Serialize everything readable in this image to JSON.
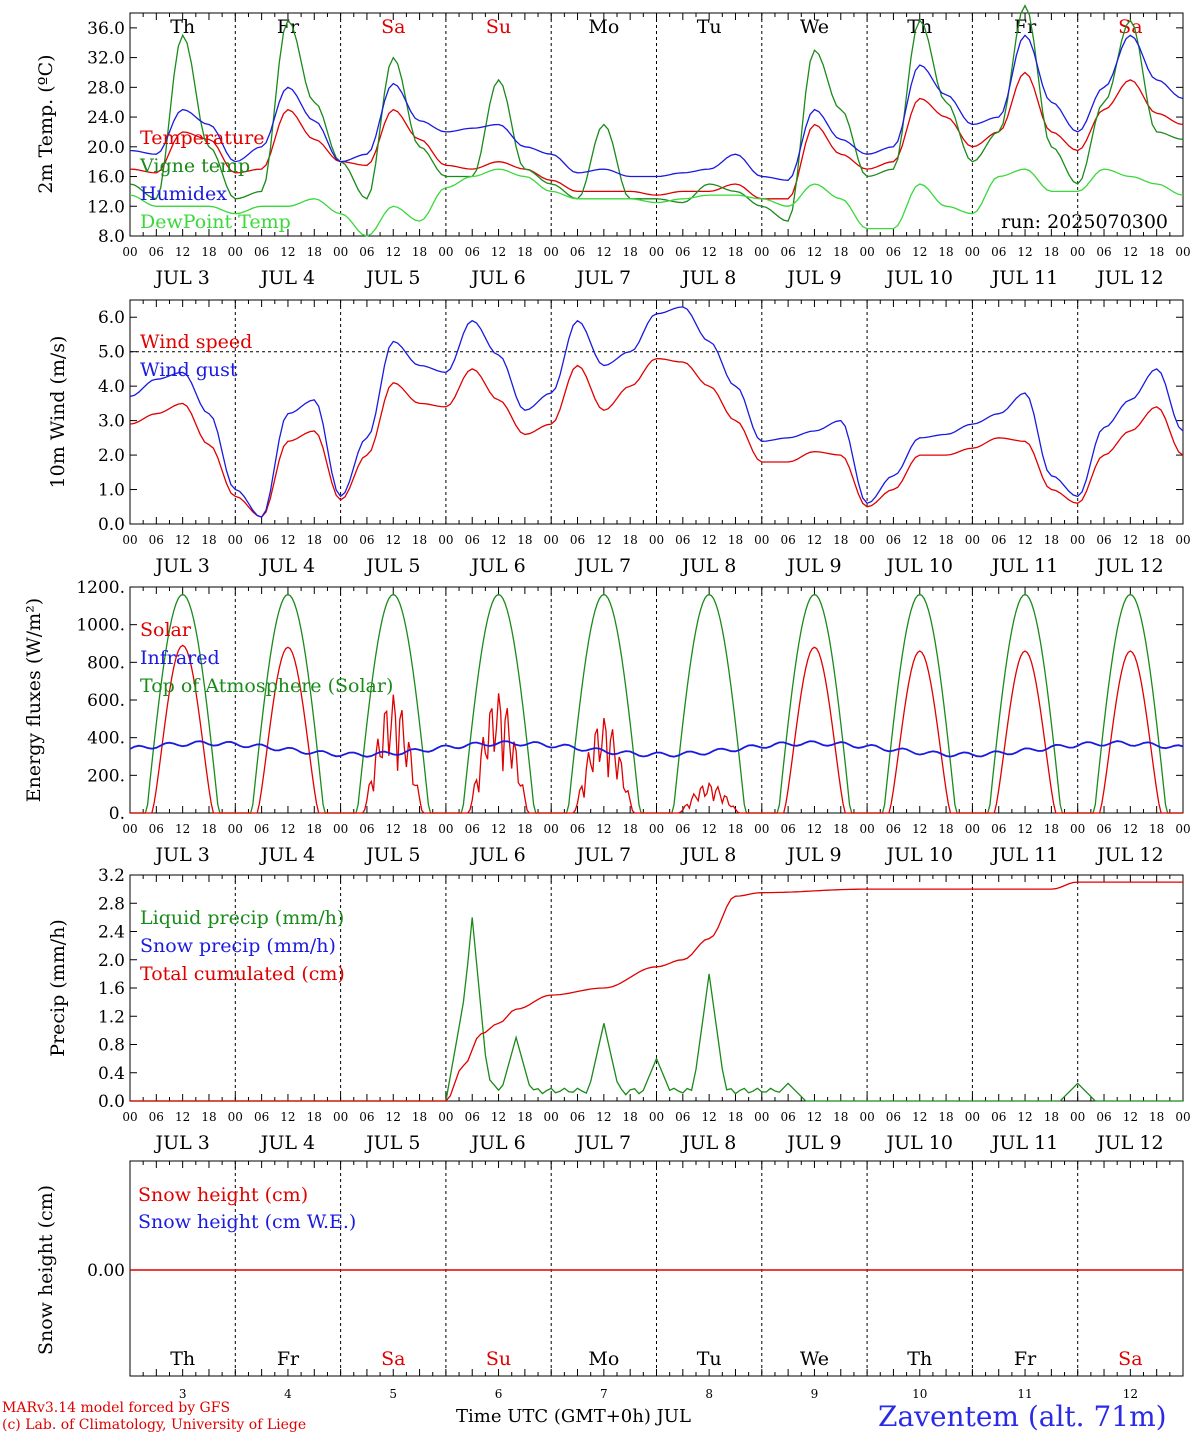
{
  "colors": {
    "red": "#e00000",
    "green": "#1a8a1a",
    "blue": "#1a1ae0",
    "lightgreen": "#3ad83a",
    "black": "#000000"
  },
  "day_names": [
    "Th",
    "Fr",
    "Sa",
    "Su",
    "Mo",
    "Tu",
    "We",
    "Th",
    "Fr",
    "Sa"
  ],
  "weekend_days": [
    "Sa",
    "Su"
  ],
  "date_labels": [
    "JUL  3",
    "JUL  4",
    "JUL  5",
    "JUL  6",
    "JUL  7",
    "JUL  8",
    "JUL  9",
    "JUL 10",
    "JUL 11",
    "JUL 12"
  ],
  "hour_ticks": [
    "00",
    "06",
    "12",
    "18"
  ],
  "bottom_day_numbers": [
    "3",
    "4",
    "5",
    "6",
    "7",
    "8",
    "9",
    "10",
    "11",
    "12"
  ],
  "footer": {
    "model": "MARv3.14 model forced by GFS",
    "credit": "(c) Lab. of Climatology, University of Liege",
    "xlabel": "Time UTC (GMT+0h) JUL",
    "station": "Zaventem (alt. 71m)"
  },
  "chart_data": [
    {
      "type": "line",
      "ylabel": "2m Temp. (ºC)",
      "ylim": [
        8,
        38
      ],
      "yticks": [
        "8.0",
        "12.0",
        "16.0",
        "20.0",
        "24.0",
        "28.0",
        "32.0",
        "36.0"
      ],
      "annotation": "run: 2025070300",
      "x_hours": [
        0,
        6,
        12,
        18,
        24,
        30,
        36,
        42,
        48,
        54,
        60,
        66,
        72,
        78,
        84,
        90,
        96,
        102,
        108,
        114,
        120,
        126,
        132,
        138,
        144,
        150,
        156,
        162,
        168,
        174,
        180,
        186,
        192,
        198,
        204,
        210,
        216,
        222,
        228,
        234,
        240
      ],
      "series": [
        {
          "name": "Temperature",
          "color": "red",
          "values": [
            17,
            16.5,
            22,
            21,
            16.5,
            17,
            25,
            21,
            18,
            17.5,
            25,
            21,
            17.5,
            17,
            18,
            17,
            15.5,
            14,
            14,
            14,
            13.5,
            14,
            14,
            15,
            13,
            13,
            23,
            19,
            17,
            18,
            26.5,
            24,
            20,
            22,
            30,
            22,
            19.5,
            25,
            29,
            24.5,
            23
          ]
        },
        {
          "name": "Vigne temp",
          "color": "green",
          "values": [
            15,
            13,
            35,
            20,
            13,
            14,
            37,
            26,
            18,
            13,
            32,
            20,
            16,
            16,
            29,
            17,
            15,
            13,
            23,
            13,
            13,
            12.5,
            15,
            14,
            12,
            10,
            33,
            25,
            16,
            17,
            37,
            26,
            18,
            22,
            39,
            20,
            15,
            26,
            37,
            22,
            21
          ]
        },
        {
          "name": "Humidex",
          "color": "blue",
          "values": [
            19.5,
            19,
            25,
            23,
            18,
            20,
            28,
            23.5,
            18,
            19,
            28.5,
            23.5,
            22,
            22.5,
            23,
            20,
            19,
            16.5,
            17,
            16,
            16,
            16.5,
            17,
            19,
            16,
            15.5,
            25,
            21,
            19,
            20,
            31,
            27,
            23,
            24,
            35,
            26,
            22,
            28,
            35,
            29,
            26.5
          ]
        },
        {
          "name": "DewPoint Temp",
          "color": "lightgreen",
          "values": [
            13.5,
            12,
            12,
            12,
            11,
            12,
            12,
            13,
            11,
            8,
            12,
            10,
            14.5,
            16,
            17,
            16,
            14,
            13,
            13,
            13,
            12.5,
            13,
            13.5,
            13.5,
            13,
            12,
            15,
            13,
            9,
            9,
            15,
            12,
            11,
            16,
            17,
            14,
            14,
            17,
            16,
            15,
            13.5
          ]
        }
      ]
    },
    {
      "type": "line",
      "ylabel": "10m Wind (m/s)",
      "ylim": [
        0,
        6.5
      ],
      "yticks": [
        "0.0",
        "1.0",
        "2.0",
        "3.0",
        "4.0",
        "5.0",
        "6.0"
      ],
      "reference_line": 5.0,
      "x_hours": [
        0,
        6,
        12,
        18,
        24,
        30,
        36,
        42,
        48,
        54,
        60,
        66,
        72,
        78,
        84,
        90,
        96,
        102,
        108,
        114,
        120,
        126,
        132,
        138,
        144,
        150,
        156,
        162,
        168,
        174,
        180,
        186,
        192,
        198,
        204,
        210,
        216,
        222,
        228,
        234,
        240
      ],
      "series": [
        {
          "name": "Wind speed",
          "color": "red",
          "values": [
            2.9,
            3.2,
            3.5,
            2.3,
            0.8,
            0.2,
            2.4,
            2.7,
            0.7,
            2.0,
            4.1,
            3.5,
            3.4,
            4.5,
            3.6,
            2.6,
            2.9,
            4.6,
            3.3,
            4.0,
            4.8,
            4.7,
            4.0,
            3.0,
            1.8,
            1.8,
            2.1,
            2.0,
            0.5,
            1.0,
            2.0,
            2.0,
            2.2,
            2.5,
            2.4,
            1.0,
            0.6,
            2.0,
            2.7,
            3.4,
            2.0
          ]
        },
        {
          "name": "Wind gust",
          "color": "blue",
          "values": [
            3.7,
            4.2,
            4.4,
            3.2,
            1.0,
            0.2,
            3.2,
            3.6,
            0.8,
            2.5,
            5.3,
            4.6,
            4.4,
            5.9,
            4.9,
            3.3,
            3.8,
            5.9,
            4.6,
            5.0,
            6.1,
            6.3,
            5.3,
            4.0,
            2.4,
            2.5,
            2.7,
            3.0,
            0.6,
            1.4,
            2.5,
            2.6,
            2.9,
            3.2,
            3.8,
            1.4,
            0.8,
            2.8,
            3.6,
            4.5,
            2.7
          ]
        }
      ]
    },
    {
      "type": "line",
      "ylabel": "Energy fluxes (W/m²)",
      "ylim": [
        0,
        1200
      ],
      "yticks": [
        "0.",
        "200.",
        "400.",
        "600.",
        "800.",
        "1000.",
        "1200."
      ],
      "series": [
        {
          "name": "Solar",
          "color": "red",
          "daily_peak": [
            890,
            880,
            630,
            640,
            510,
            160,
            880,
            860,
            860,
            860
          ],
          "cloudy_days": [
            2,
            3,
            4,
            5
          ]
        },
        {
          "name": "Infrared",
          "color": "blue",
          "approx_range": [
            290,
            390
          ]
        },
        {
          "name": "Top of Atmosphere (Solar)",
          "color": "green",
          "daily_peak": 1160
        }
      ]
    },
    {
      "type": "line",
      "ylabel": "Precip (mm/h)",
      "ylim": [
        0,
        3.2
      ],
      "yticks": [
        "0.0",
        "0.4",
        "0.8",
        "1.2",
        "1.6",
        "2.0",
        "2.4",
        "2.8",
        "3.2"
      ],
      "x_hours": [
        0,
        72,
        76,
        80,
        84,
        88,
        96,
        108,
        120,
        126,
        132,
        138,
        144,
        168,
        210,
        216,
        240
      ],
      "series": [
        {
          "name": "Liquid precip (mm/h)",
          "color": "green",
          "peaks": [
            [
              72,
              0.0
            ],
            [
              76,
              1.4
            ],
            [
              78,
              2.6
            ],
            [
              82,
              0.3
            ],
            [
              88,
              0.9
            ],
            [
              96,
              0.1
            ],
            [
              108,
              1.1
            ],
            [
              120,
              0.6
            ],
            [
              132,
              1.8
            ],
            [
              150,
              0.25
            ],
            [
              216,
              0.25
            ]
          ]
        },
        {
          "name": "Snow precip (mm/h)",
          "color": "blue",
          "values": []
        },
        {
          "name": "Total cumulated (cm)",
          "color": "red",
          "values": [
            0,
            0,
            0.5,
            0.95,
            1.1,
            1.3,
            1.5,
            1.6,
            1.9,
            2.0,
            2.3,
            2.9,
            2.95,
            3.0,
            3.0,
            3.1,
            3.1
          ]
        }
      ]
    },
    {
      "type": "line",
      "ylabel": "Snow height (cm)",
      "yticks": [
        "0.00"
      ],
      "series": [
        {
          "name": "Snow height (cm)",
          "color": "red",
          "values": [
            0,
            0
          ]
        },
        {
          "name": "Snow height (cm W.E.)",
          "color": "blue",
          "values": []
        }
      ]
    }
  ]
}
